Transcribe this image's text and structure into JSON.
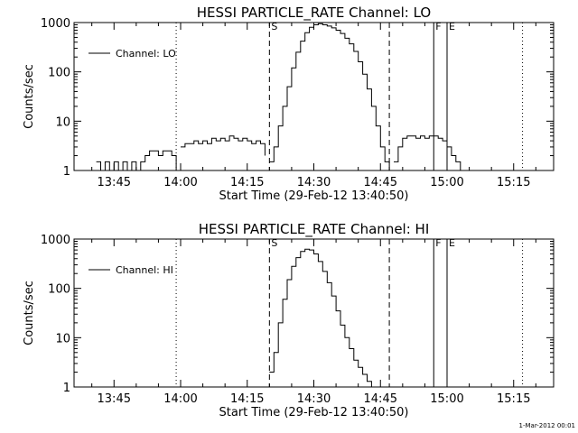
{
  "footer": {
    "stamp": "1-Mar-2012 00:01"
  },
  "chart_data": [
    {
      "type": "line",
      "title": "HESSI PARTICLE_RATE Channel: LO",
      "xlabel": "Start Time (29-Feb-12 13:40:50)",
      "ylabel": "Counts/sec",
      "yscale": "log",
      "xlim": [
        "13:36",
        "15:24"
      ],
      "ylim": [
        1,
        1000
      ],
      "xticks": [
        "13:45",
        "14:00",
        "14:15",
        "14:30",
        "14:45",
        "15:00",
        "15:15"
      ],
      "yticks": [
        "1",
        "10",
        "100",
        "1000"
      ],
      "legend": {
        "label": "Channel: LO",
        "placement": "top-left"
      },
      "markers": [
        {
          "label": "S",
          "time": "14:20",
          "style": "dashed"
        },
        {
          "label": "",
          "time": "14:47",
          "style": "dashed"
        },
        {
          "label": "F",
          "time": "14:57",
          "style": "solid"
        },
        {
          "label": "E",
          "time": "15:00",
          "style": "solid"
        },
        {
          "label": "",
          "time": "13:59",
          "style": "dotted"
        },
        {
          "label": "",
          "time": "15:00",
          "style": "dotted"
        },
        {
          "label": "",
          "time": "15:17",
          "style": "dotted"
        }
      ],
      "series": [
        {
          "name": "Channel: LO",
          "segments": [
            {
              "x": [
                "13:41",
                "13:42",
                "13:43",
                "13:44",
                "13:45",
                "13:46",
                "13:47",
                "13:48",
                "13:49",
                "13:50",
                "13:51",
                "13:52",
                "13:53",
                "13:54",
                "13:55",
                "13:56",
                "13:57",
                "13:58",
                "13:59"
              ],
              "y": [
                1.5,
                1,
                1.5,
                1,
                1.5,
                1,
                1.5,
                1,
                1.5,
                1,
                1.5,
                2,
                2.5,
                2.5,
                2,
                2.5,
                2.5,
                2,
                1
              ]
            },
            {
              "x": [
                "14:00",
                "14:01",
                "14:02",
                "14:03",
                "14:04",
                "14:05",
                "14:06",
                "14:07",
                "14:08",
                "14:09",
                "14:10",
                "14:11",
                "14:12",
                "14:13",
                "14:14",
                "14:15",
                "14:16",
                "14:17",
                "14:18",
                "14:19"
              ],
              "y": [
                3,
                3.5,
                3.5,
                4,
                3.5,
                4,
                3.5,
                4.5,
                4,
                4.5,
                4,
                5,
                4.5,
                4,
                4.5,
                4,
                3.5,
                4,
                3.5,
                2
              ]
            },
            {
              "x": [
                "14:20",
                "14:21",
                "14:22",
                "14:23",
                "14:24",
                "14:25",
                "14:26",
                "14:27",
                "14:28",
                "14:29",
                "14:30",
                "14:31",
                "14:32",
                "14:33",
                "14:34",
                "14:35",
                "14:36",
                "14:37",
                "14:38",
                "14:39",
                "14:40",
                "14:41",
                "14:42",
                "14:43",
                "14:44",
                "14:45",
                "14:46",
                "14:47"
              ],
              "y": [
                1.5,
                3,
                8,
                20,
                50,
                120,
                250,
                420,
                620,
                800,
                900,
                950,
                900,
                850,
                780,
                700,
                600,
                480,
                370,
                260,
                160,
                90,
                45,
                20,
                8,
                3,
                1.5,
                1
              ]
            },
            {
              "x": [
                "14:48",
                "14:49",
                "14:50",
                "14:51",
                "14:52",
                "14:53",
                "14:54",
                "14:55",
                "14:56",
                "14:57",
                "14:58",
                "14:59",
                "15:00",
                "15:01",
                "15:02",
                "15:03"
              ],
              "y": [
                1.5,
                3,
                4.5,
                5,
                5,
                4.5,
                5,
                4.5,
                5,
                5,
                4.5,
                4,
                3,
                2,
                1.5,
                1
              ]
            }
          ]
        }
      ]
    },
    {
      "type": "line",
      "title": "HESSI PARTICLE_RATE Channel: HI",
      "xlabel": "Start Time (29-Feb-12 13:40:50)",
      "ylabel": "Counts/sec",
      "yscale": "log",
      "xlim": [
        "13:36",
        "15:24"
      ],
      "ylim": [
        1,
        1000
      ],
      "xticks": [
        "13:45",
        "14:00",
        "14:15",
        "14:30",
        "14:45",
        "15:00",
        "15:15"
      ],
      "yticks": [
        "1",
        "10",
        "100",
        "1000"
      ],
      "legend": {
        "label": "Channel: HI",
        "placement": "top-left"
      },
      "markers": [
        {
          "label": "S",
          "time": "14:20",
          "style": "dashed"
        },
        {
          "label": "",
          "time": "14:47",
          "style": "dashed"
        },
        {
          "label": "F",
          "time": "14:57",
          "style": "solid"
        },
        {
          "label": "E",
          "time": "15:00",
          "style": "solid"
        },
        {
          "label": "",
          "time": "13:59",
          "style": "dotted"
        },
        {
          "label": "",
          "time": "15:00",
          "style": "dotted"
        },
        {
          "label": "",
          "time": "15:17",
          "style": "dotted"
        }
      ],
      "series": [
        {
          "name": "Channel: HI",
          "segments": [
            {
              "x": [
                "14:20",
                "14:21",
                "14:22",
                "14:23",
                "14:24",
                "14:25",
                "14:26",
                "14:27",
                "14:28",
                "14:29",
                "14:30",
                "14:31",
                "14:32",
                "14:33",
                "14:34",
                "14:35",
                "14:36",
                "14:37",
                "14:38",
                "14:39",
                "14:40",
                "14:41",
                "14:42",
                "14:43"
              ],
              "y": [
                2,
                5,
                20,
                60,
                150,
                280,
                420,
                560,
                620,
                600,
                500,
                350,
                220,
                130,
                70,
                35,
                18,
                10,
                6,
                3.5,
                2.5,
                1.8,
                1.3,
                1
              ]
            }
          ]
        }
      ]
    }
  ]
}
